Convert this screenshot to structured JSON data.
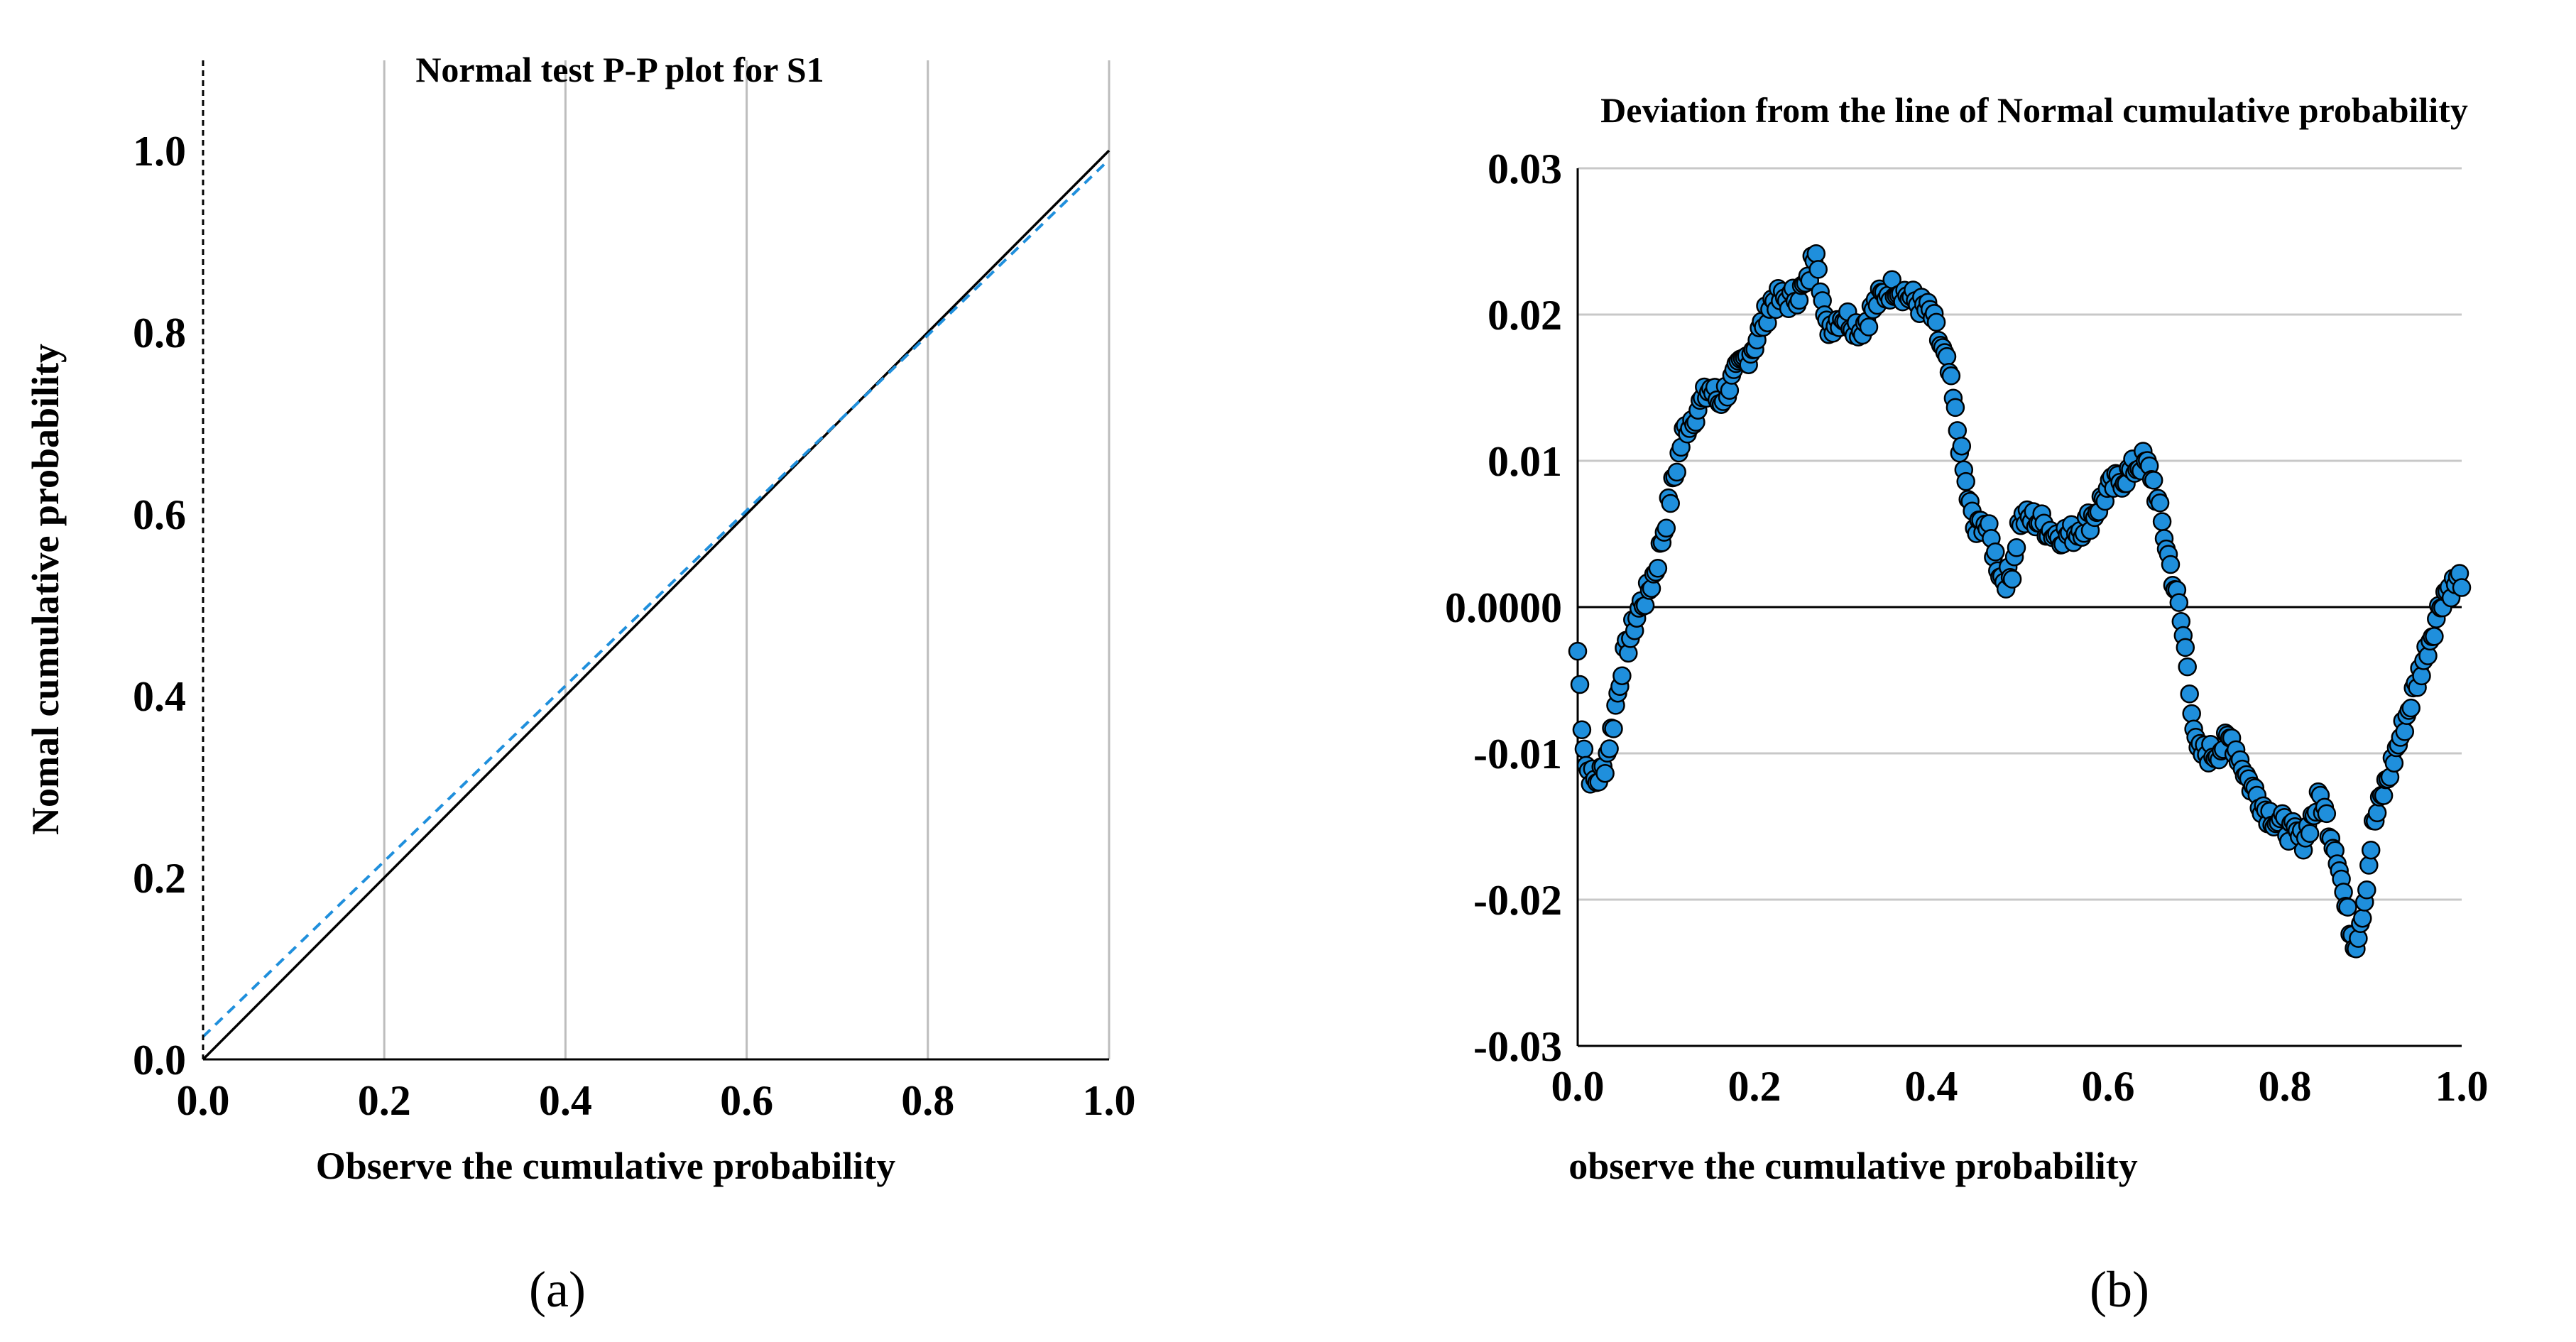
{
  "chart_data": [
    {
      "panel_label": "(a)",
      "type": "line",
      "title": "Normal test P-P plot for S1",
      "xlabel": "Observe the cumulative probability",
      "ylabel": "Nomal cumulative probability",
      "xlim": [
        0,
        1
      ],
      "ylim": [
        0,
        1.1
      ],
      "x_ticks": [
        "0.0",
        "0.2",
        "0.4",
        "0.6",
        "0.8",
        "1.0"
      ],
      "y_ticks": [
        "0.0",
        "0.2",
        "0.4",
        "0.6",
        "0.8",
        "1.0"
      ],
      "grid": "vertical",
      "series": [
        {
          "style": "solid",
          "color": "#000000",
          "x": [
            0,
            1
          ],
          "y": [
            0,
            1
          ]
        },
        {
          "style": "dashed",
          "color": "#1f8fdc",
          "x": [
            0,
            1
          ],
          "y": [
            0.025,
            0.99
          ]
        }
      ]
    },
    {
      "panel_label": "(b)",
      "type": "scatter",
      "title": "Deviation from the line of Normal cumulative probability",
      "xlabel": "observe the cumulative probability",
      "ylabel": "",
      "xlim": [
        0,
        1
      ],
      "ylim": [
        -0.03,
        0.03
      ],
      "x_ticks": [
        "0.0",
        "0.2",
        "0.4",
        "0.6",
        "0.8",
        "1.0"
      ],
      "y_ticks": [
        "0.03",
        "0.02",
        "0.01",
        "0.0000",
        "-0.01",
        "-0.02",
        "-0.03"
      ],
      "grid": "horizontal",
      "reference_line": 0,
      "marker_color": "#1f8fdc",
      "marker_edge": "#000000",
      "curve_x": [
        0.0,
        0.005,
        0.01,
        0.02,
        0.03,
        0.04,
        0.05,
        0.06,
        0.07,
        0.08,
        0.09,
        0.1,
        0.12,
        0.14,
        0.15,
        0.16,
        0.18,
        0.2,
        0.22,
        0.24,
        0.26,
        0.27,
        0.28,
        0.3,
        0.32,
        0.34,
        0.36,
        0.38,
        0.4,
        0.42,
        0.43,
        0.44,
        0.45,
        0.46,
        0.47,
        0.48,
        0.49,
        0.5,
        0.52,
        0.54,
        0.56,
        0.58,
        0.6,
        0.62,
        0.64,
        0.65,
        0.66,
        0.67,
        0.68,
        0.69,
        0.7,
        0.72,
        0.74,
        0.76,
        0.78,
        0.8,
        0.82,
        0.84,
        0.85,
        0.86,
        0.87,
        0.88,
        0.89,
        0.9,
        0.92,
        0.94,
        0.96,
        0.98,
        1.0
      ],
      "curve_y": [
        -0.003,
        -0.008,
        -0.011,
        -0.012,
        -0.011,
        -0.008,
        -0.004,
        -0.002,
        0.0,
        0.001,
        0.003,
        0.006,
        0.012,
        0.014,
        0.015,
        0.014,
        0.016,
        0.018,
        0.021,
        0.021,
        0.022,
        0.025,
        0.019,
        0.02,
        0.019,
        0.021,
        0.022,
        0.021,
        0.02,
        0.016,
        0.012,
        0.008,
        0.005,
        0.006,
        0.004,
        0.002,
        0.002,
        0.006,
        0.006,
        0.005,
        0.005,
        0.006,
        0.008,
        0.009,
        0.01,
        0.009,
        0.006,
        0.003,
        0.0,
        -0.004,
        -0.01,
        -0.01,
        -0.009,
        -0.012,
        -0.014,
        -0.015,
        -0.016,
        -0.013,
        -0.015,
        -0.017,
        -0.021,
        -0.023,
        -0.02,
        -0.015,
        -0.011,
        -0.007,
        -0.003,
        0.001,
        0.002
      ],
      "n_points": 420
    }
  ],
  "panel_labels": [
    "(a)",
    "(b)"
  ]
}
